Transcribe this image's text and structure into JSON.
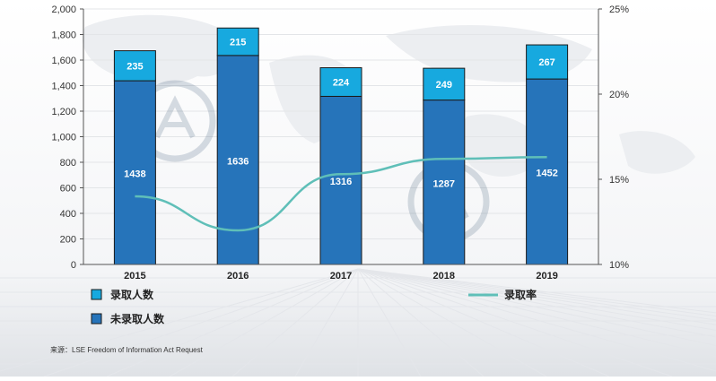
{
  "colors": {
    "admitted": "#17a9df",
    "not_admitted": "#2674ba",
    "rate_line": "#5fbfb8",
    "bar_edge": "#1a1a1a",
    "axis": "#555555"
  },
  "legend": {
    "admitted": "录取人数",
    "not_admitted": "未录取人数",
    "rate": "录取率"
  },
  "source": "来源：LSE Freedom of Information Act Request",
  "chart_data": {
    "type": "bar",
    "stacked": true,
    "categories": [
      "2015",
      "2016",
      "2017",
      "2018",
      "2019"
    ],
    "series": [
      {
        "name": "未录取人数",
        "values": [
          1438,
          1636,
          1316,
          1287,
          1452
        ]
      },
      {
        "name": "录取人数",
        "values": [
          235,
          215,
          224,
          249,
          267
        ]
      }
    ],
    "line_series": {
      "name": "录取率",
      "values": [
        14.0,
        12.0,
        15.3,
        16.2,
        16.3
      ],
      "axis": "right"
    },
    "ylim": [
      0,
      2000
    ],
    "yticks": [
      "0",
      "200",
      "400",
      "600",
      "800",
      "1,000",
      "1,200",
      "1,400",
      "1,600",
      "1,800",
      "2,000"
    ],
    "y2lim": [
      10,
      25
    ],
    "y2ticks": [
      "10%",
      "15%",
      "20%",
      "25%"
    ],
    "legend_position": "bottom"
  }
}
